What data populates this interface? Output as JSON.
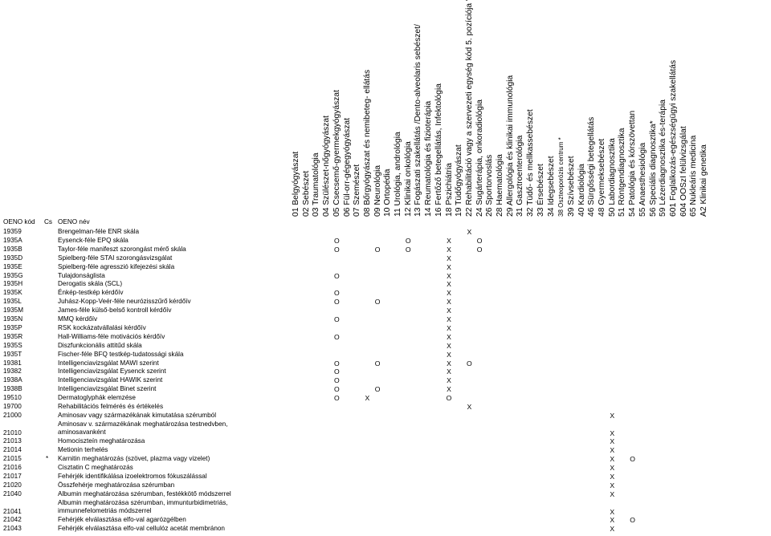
{
  "header": {
    "oeno_kod": "OENO kód",
    "cs": "Cs",
    "oeno_nev": "OENO név",
    "columns": [
      "01 Belgyógyászat",
      "02 Sebészet",
      "03 Traumatológia",
      "04 Szülészet-nőgyógyászat",
      "05 Csecsemő-gyermekgyógyászat",
      "06 Fül-orr-gégegyógyászat",
      "07 Szemészet",
      "08 Bőrgyógyászat és nemibeteg- ellátás",
      "09 Neurológia",
      "10 Ortopédia",
      "11 Urológia, andrológia",
      "12 Klinikai onkológia",
      "13 Fogászati szakellátás /Dento-alveolaris sebészet/",
      "14 Reumatológia és fizioterápia",
      "16 Fertőző betegellátás, Infektológia",
      "18 Pszichiátria",
      "19 Tüdőgyógyászat",
      "22 Rehabilitáció vagy a szervezeti egység kód 5. pozíciója \"P\"",
      "24 Sugárterápia, onkoradiológia",
      "26 Sportorvoslás",
      "28 Haematológia",
      "29 Allergológia és klinikai immunológia",
      "31 Gasztroenterológia",
      "32 Tüdő- és mellkassebészet",
      "33 Érsebészet",
      "34 Idegsebészet",
      "38 Oszteoporózis centrum *",
      "39 Szívsebészet",
      "40 Kardiológia",
      "46 Sürgősségi betegellátás",
      "48 Gyermeksebészet",
      "50 Labordiagnosztika",
      "51 Röntgendiagnosztika",
      "54 Patológia és kórszövettan",
      "55 Anaesthesiológia",
      "56 Speciális diagnosztika*",
      "59 Lézerdiagnosztika és-terápia",
      "601 Foglalkozás-egészségügyi szakellátás",
      "604 OOSzI felülvizsgálat",
      "65 Nukleáris medicina",
      "A2 Klinikai genetika"
    ]
  },
  "rows": [
    {
      "code": "19359",
      "cs": "",
      "name": "Brengelman-féle ENR skála",
      "marks": [
        {
          "col": 17,
          "v": "X"
        }
      ]
    },
    {
      "code": "1935A",
      "cs": "",
      "name": "Eysenck-féle EPQ skála",
      "marks": [
        {
          "col": 4,
          "v": "O"
        },
        {
          "col": 11,
          "v": "O"
        },
        {
          "col": 15,
          "v": "X"
        },
        {
          "col": 18,
          "v": "O"
        }
      ]
    },
    {
      "code": "1935B",
      "cs": "",
      "name": "Taylor-féle manifeszt szorongást mérő skála",
      "marks": [
        {
          "col": 4,
          "v": "O"
        },
        {
          "col": 8,
          "v": "O"
        },
        {
          "col": 11,
          "v": "O"
        },
        {
          "col": 15,
          "v": "X"
        },
        {
          "col": 18,
          "v": "O"
        }
      ]
    },
    {
      "code": "1935D",
      "cs": "",
      "name": "Spielberg-féle STAI szorongásvizsgálat",
      "marks": [
        {
          "col": 15,
          "v": "X"
        }
      ]
    },
    {
      "code": "1935E",
      "cs": "",
      "name": "Spielberg-féle agresszió kifejezési skála",
      "marks": [
        {
          "col": 15,
          "v": "X"
        }
      ]
    },
    {
      "code": "1935G",
      "cs": "",
      "name": "Tulajdonságlista",
      "marks": [
        {
          "col": 4,
          "v": "O"
        },
        {
          "col": 15,
          "v": "X"
        }
      ]
    },
    {
      "code": "1935H",
      "cs": "",
      "name": "Derogatis skála (SCL)",
      "marks": [
        {
          "col": 15,
          "v": "X"
        }
      ]
    },
    {
      "code": "1935K",
      "cs": "",
      "name": "Énkép-testkép kérdőív",
      "marks": [
        {
          "col": 4,
          "v": "O"
        },
        {
          "col": 15,
          "v": "X"
        }
      ]
    },
    {
      "code": "1935L",
      "cs": "",
      "name": "Juhász-Kopp-Veér-féle neurózisszűrő kérdőív",
      "marks": [
        {
          "col": 4,
          "v": "O"
        },
        {
          "col": 8,
          "v": "O"
        },
        {
          "col": 15,
          "v": "X"
        }
      ]
    },
    {
      "code": "1935M",
      "cs": "",
      "name": "James-féle külső-belső kontroll kérdőív",
      "marks": [
        {
          "col": 15,
          "v": "X"
        }
      ]
    },
    {
      "code": "1935N",
      "cs": "",
      "name": "MMQ kérdőív",
      "marks": [
        {
          "col": 4,
          "v": "O"
        },
        {
          "col": 15,
          "v": "X"
        }
      ]
    },
    {
      "code": "1935P",
      "cs": "",
      "name": "RSK kockázatvállalási kérdőív",
      "marks": [
        {
          "col": 15,
          "v": "X"
        }
      ]
    },
    {
      "code": "1935R",
      "cs": "",
      "name": "Hall-Williams-féle motivációs kérdőív",
      "marks": [
        {
          "col": 4,
          "v": "O"
        },
        {
          "col": 15,
          "v": "X"
        }
      ]
    },
    {
      "code": "1935S",
      "cs": "",
      "name": "Diszfunkcionális attitűd skála",
      "marks": [
        {
          "col": 15,
          "v": "X"
        }
      ]
    },
    {
      "code": "1935T",
      "cs": "",
      "name": "Fischer-féle BFQ testkép-tudatossági skála",
      "marks": [
        {
          "col": 15,
          "v": "X"
        }
      ]
    },
    {
      "code": "19381",
      "cs": "",
      "name": "Intelligenciavizsgálat MAWI szerint",
      "marks": [
        {
          "col": 4,
          "v": "O"
        },
        {
          "col": 8,
          "v": "O"
        },
        {
          "col": 15,
          "v": "X"
        },
        {
          "col": 17,
          "v": "O"
        }
      ]
    },
    {
      "code": "19382",
      "cs": "",
      "name": "Intelligenciavizsgálat Eysenck szerint",
      "marks": [
        {
          "col": 4,
          "v": "O"
        },
        {
          "col": 15,
          "v": "X"
        }
      ]
    },
    {
      "code": "1938A",
      "cs": "",
      "name": "Intelligenciavizsgálat HAWIK szerint",
      "marks": [
        {
          "col": 4,
          "v": "O"
        },
        {
          "col": 15,
          "v": "X"
        }
      ]
    },
    {
      "code": "1938B",
      "cs": "",
      "name": "Intelligenciavizsgálat Binet szerint",
      "marks": [
        {
          "col": 4,
          "v": "O"
        },
        {
          "col": 8,
          "v": "O"
        },
        {
          "col": 15,
          "v": "X"
        }
      ]
    },
    {
      "code": "19510",
      "cs": "",
      "name": "Dermatoglyphák elemzése",
      "marks": [
        {
          "col": 4,
          "v": "O"
        },
        {
          "col": 7,
          "v": "X"
        },
        {
          "col": 15,
          "v": "O"
        }
      ]
    },
    {
      "code": "19700",
      "cs": "",
      "name": "Rehabilitációs felmérés és értékelés",
      "marks": [
        {
          "col": 17,
          "v": "X"
        }
      ]
    },
    {
      "code": "21000",
      "cs": "",
      "name": "Aminosav vagy származékának kimutatása szérumból",
      "marks": [
        {
          "col": 31,
          "v": "X"
        }
      ]
    },
    {
      "code": "21010",
      "cs": "",
      "name": "Aminosav v. származékának meghatározása testnedvben, aminosavanként",
      "marks": [
        {
          "col": 31,
          "v": "X"
        }
      ],
      "tall": true
    },
    {
      "code": "21013",
      "cs": "",
      "name": "Homociszteín meghatározása",
      "marks": [
        {
          "col": 31,
          "v": "X"
        }
      ]
    },
    {
      "code": "21014",
      "cs": "",
      "name": "Metionin terhelés",
      "marks": [
        {
          "col": 31,
          "v": "X"
        }
      ]
    },
    {
      "code": "21015",
      "cs": "*",
      "name": "Karnitin meghatározás (szövet, plazma vagy vizelet)",
      "marks": [
        {
          "col": 31,
          "v": "X"
        },
        {
          "col": 33,
          "v": "O"
        }
      ]
    },
    {
      "code": "21016",
      "cs": "",
      "name": "Cisztatin C meghatározás",
      "marks": [
        {
          "col": 31,
          "v": "X"
        }
      ]
    },
    {
      "code": "21017",
      "cs": "",
      "name": "Fehérjék identifikálása izoelektromos fókuszálással",
      "marks": [
        {
          "col": 31,
          "v": "X"
        }
      ]
    },
    {
      "code": "21020",
      "cs": "",
      "name": "Összfehérje meghatározása szérumban",
      "marks": [
        {
          "col": 31,
          "v": "X"
        }
      ]
    },
    {
      "code": "21040",
      "cs": "",
      "name": "Albumin meghatározása szérumban, festékkötő módszerrel",
      "marks": [
        {
          "col": 31,
          "v": "X"
        }
      ]
    },
    {
      "code": "21041",
      "cs": "",
      "name": "Albumin meghatározása szérumban, immunturbidimetriás, immunnefelometriás módszerrel",
      "marks": [
        {
          "col": 31,
          "v": "X"
        }
      ],
      "tall": true
    },
    {
      "code": "21042",
      "cs": "",
      "name": "Fehérjék elválasztása elfo-val agarózgélben",
      "marks": [
        {
          "col": 31,
          "v": "X"
        },
        {
          "col": 33,
          "v": "O"
        }
      ]
    },
    {
      "code": "21043",
      "cs": "",
      "name": "Fehérjék elválasztása elfo-val cellulóz acetát membránon",
      "marks": [
        {
          "col": 31,
          "v": "X"
        }
      ]
    }
  ]
}
